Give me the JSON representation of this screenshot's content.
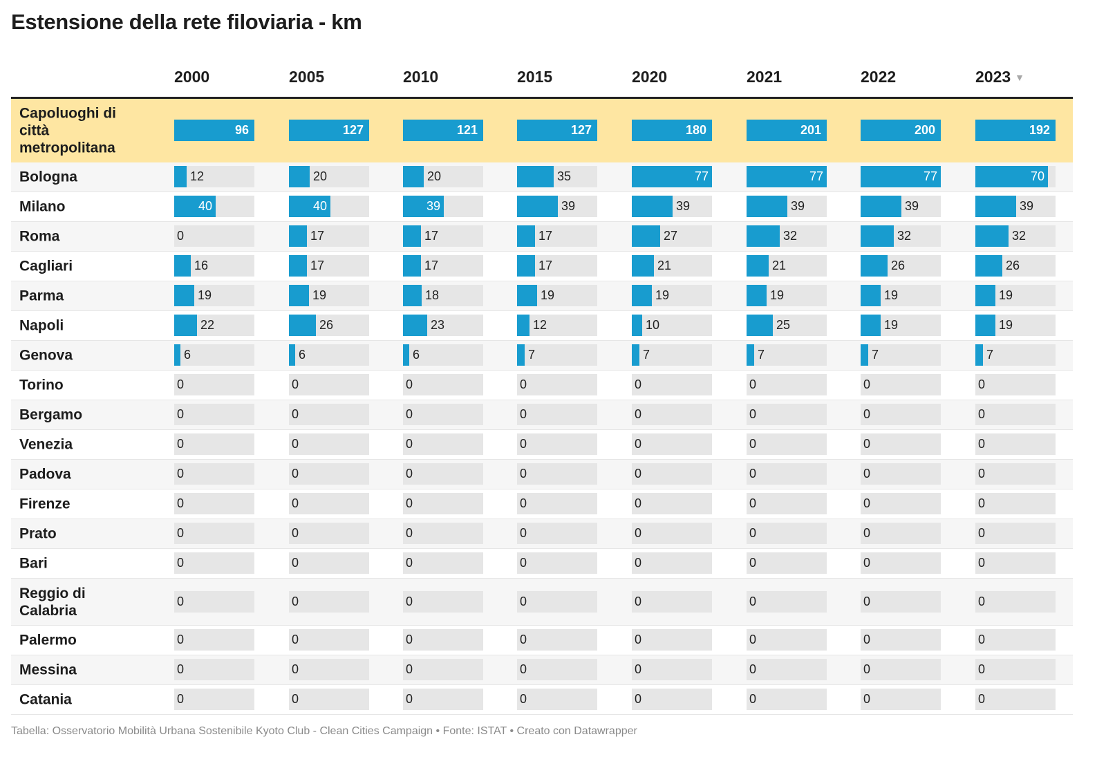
{
  "title": "Estensione della rete filoviaria - km",
  "colors": {
    "bar": "#189ccf",
    "track": "#e6e6e6",
    "highlight": "#fee6a2",
    "zebra": "#f6f6f6"
  },
  "sort_icon": "sort-descending-icon",
  "footer": "Tabella: Osservatorio Mobilità Urbana Sostenibile Kyoto Club - Clean Cities Campaign • Fonte: ISTAT • Creato con Datawrapper",
  "chart_data": {
    "type": "table",
    "title": "Estensione della rete filoviaria - km",
    "columns": [
      "2000",
      "2005",
      "2010",
      "2015",
      "2020",
      "2021",
      "2022",
      "2023"
    ],
    "sorted_by": "2023",
    "sort_order": "descending",
    "highlighted_row": "Capoluoghi di città metropolitana",
    "rows": [
      {
        "name": "Capoluoghi di città metropolitana",
        "values": [
          96,
          127,
          121,
          127,
          180,
          201,
          200,
          192
        ]
      },
      {
        "name": "Bologna",
        "values": [
          12,
          20,
          20,
          35,
          77,
          77,
          77,
          70
        ]
      },
      {
        "name": "Milano",
        "values": [
          40,
          40,
          39,
          39,
          39,
          39,
          39,
          39
        ]
      },
      {
        "name": "Roma",
        "values": [
          0,
          17,
          17,
          17,
          27,
          32,
          32,
          32
        ]
      },
      {
        "name": "Cagliari",
        "values": [
          16,
          17,
          17,
          17,
          21,
          21,
          26,
          26
        ]
      },
      {
        "name": "Parma",
        "values": [
          19,
          19,
          18,
          19,
          19,
          19,
          19,
          19
        ]
      },
      {
        "name": "Napoli",
        "values": [
          22,
          26,
          23,
          12,
          10,
          25,
          19,
          19
        ]
      },
      {
        "name": "Genova",
        "values": [
          6,
          6,
          6,
          7,
          7,
          7,
          7,
          7
        ]
      },
      {
        "name": "Torino",
        "values": [
          0,
          0,
          0,
          0,
          0,
          0,
          0,
          0
        ]
      },
      {
        "name": "Bergamo",
        "values": [
          0,
          0,
          0,
          0,
          0,
          0,
          0,
          0
        ]
      },
      {
        "name": "Venezia",
        "values": [
          0,
          0,
          0,
          0,
          0,
          0,
          0,
          0
        ]
      },
      {
        "name": "Padova",
        "values": [
          0,
          0,
          0,
          0,
          0,
          0,
          0,
          0
        ]
      },
      {
        "name": "Firenze",
        "values": [
          0,
          0,
          0,
          0,
          0,
          0,
          0,
          0
        ]
      },
      {
        "name": "Prato",
        "values": [
          0,
          0,
          0,
          0,
          0,
          0,
          0,
          0
        ]
      },
      {
        "name": "Bari",
        "values": [
          0,
          0,
          0,
          0,
          0,
          0,
          0,
          0
        ]
      },
      {
        "name": "Reggio di Calabria",
        "values": [
          0,
          0,
          0,
          0,
          0,
          0,
          0,
          0
        ]
      },
      {
        "name": "Palermo",
        "values": [
          0,
          0,
          0,
          0,
          0,
          0,
          0,
          0
        ]
      },
      {
        "name": "Messina",
        "values": [
          0,
          0,
          0,
          0,
          0,
          0,
          0,
          0
        ]
      },
      {
        "name": "Catania",
        "values": [
          0,
          0,
          0,
          0,
          0,
          0,
          0,
          0
        ]
      }
    ]
  }
}
